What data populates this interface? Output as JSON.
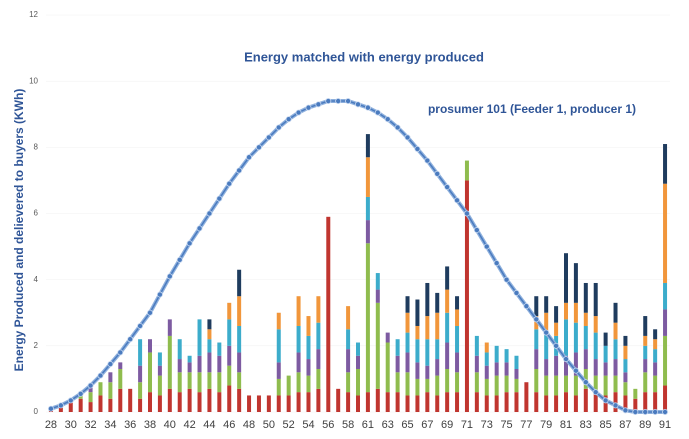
{
  "chart_data": {
    "type": "bar",
    "title": "Energy matched with energy produced",
    "ylabel": "Energy Produced and delievered to buyers (KWh)",
    "categories": [
      "28",
      null,
      "30",
      null,
      "32",
      null,
      "34",
      null,
      "36",
      null,
      "38",
      null,
      "40",
      null,
      "42",
      null,
      "44",
      null,
      "46",
      null,
      "48",
      null,
      "50",
      null,
      "52",
      null,
      "54",
      null,
      "56",
      null,
      "58",
      null,
      "61",
      null,
      "63",
      null,
      "65",
      null,
      "67",
      null,
      "69",
      null,
      "71",
      null,
      "73",
      null,
      "75",
      null,
      "77",
      null,
      "79",
      null,
      "81",
      null,
      "83",
      null,
      "85",
      null,
      "87",
      null,
      "89",
      null,
      "91"
    ],
    "ylim": [
      0,
      12
    ],
    "yticks": [
      0,
      2,
      4,
      6,
      8,
      10,
      12
    ],
    "series": [
      {
        "color": "#c0352f",
        "values": [
          0.05,
          0.2,
          0.3,
          0.4,
          0.3,
          0.5,
          0.4,
          0.7,
          0.7,
          0.4,
          0.6,
          0.5,
          0.7,
          0.6,
          0.7,
          0.6,
          0.7,
          0.6,
          0.8,
          0.7,
          0.5,
          0.5,
          0.5,
          0.5,
          0.5,
          0.6,
          0.6,
          0.7,
          5.9,
          0.7,
          0.6,
          0.5,
          0.6,
          0.7,
          0.6,
          0.6,
          0.5,
          0.5,
          0.6,
          0.5,
          0.6,
          0.6,
          7.0,
          0.6,
          0.5,
          0.5,
          0.6,
          0.6,
          0.9,
          0.6,
          0.5,
          0.5,
          0.6,
          0.5,
          0.7,
          0.6,
          0.5,
          0.6,
          0.5,
          0.4,
          0.6,
          0.6,
          0.8
        ]
      },
      {
        "color": "#8fbc4e",
        "values": [
          0.05,
          0,
          0,
          0.2,
          0.3,
          0.4,
          0.5,
          0.6,
          0,
          0.5,
          1.2,
          0.6,
          1.6,
          0.6,
          0.5,
          0.6,
          0.5,
          0.6,
          0.6,
          0.5,
          0,
          0,
          0,
          0.5,
          0.6,
          0.6,
          0.5,
          0.6,
          0,
          0,
          0.6,
          0.8,
          4.5,
          2.6,
          1.5,
          0.6,
          0.7,
          0.5,
          0.4,
          0.6,
          0.7,
          0.6,
          0.6,
          0.6,
          0.5,
          0.6,
          0.5,
          0.4,
          0,
          0.7,
          0.6,
          0.6,
          0.5,
          0.6,
          0.6,
          0.5,
          0.6,
          0.5,
          0.4,
          0.3,
          0.6,
          0.5,
          1.5
        ]
      },
      {
        "color": "#7d5ba1",
        "values": [
          0,
          0,
          0,
          0,
          0.2,
          0,
          0.3,
          0.2,
          0,
          0.5,
          0.4,
          0.3,
          0.5,
          0.4,
          0.3,
          0.5,
          0.6,
          0.5,
          0.6,
          0.6,
          0,
          0,
          0,
          0.5,
          0,
          0.6,
          0.5,
          0.6,
          0,
          0,
          0.7,
          0.4,
          0.7,
          0.4,
          0.3,
          0.5,
          0.6,
          0.5,
          0.4,
          0.5,
          0.8,
          0.6,
          0,
          0.5,
          0.4,
          0.4,
          0.4,
          0.3,
          0,
          0.6,
          0.5,
          0.6,
          0.6,
          0.7,
          0.6,
          0.5,
          0.4,
          0.5,
          0.3,
          0,
          0.4,
          0.4,
          0.8
        ]
      },
      {
        "color": "#3caccb",
        "values": [
          0,
          0,
          0,
          0,
          0,
          0,
          0,
          0,
          0,
          0.8,
          0,
          0.4,
          0,
          0.6,
          0.2,
          1.1,
          0.4,
          0.4,
          0.8,
          0.8,
          0,
          0,
          0,
          1.0,
          0,
          0.8,
          0.7,
          0.8,
          0,
          0,
          0.6,
          0.4,
          0.7,
          0.5,
          0,
          0.5,
          0.6,
          0.7,
          0.8,
          0.6,
          0.9,
          0.8,
          0,
          0.6,
          0.4,
          0.5,
          0.4,
          0.4,
          0,
          0.6,
          0.8,
          0.6,
          1.1,
          0.9,
          0.7,
          0.8,
          0.5,
          0.6,
          0.4,
          0,
          0.4,
          0.4,
          0.8
        ]
      },
      {
        "color": "#f1963b",
        "values": [
          0,
          0,
          0,
          0,
          0,
          0,
          0,
          0,
          0,
          0,
          0,
          0,
          0,
          0,
          0,
          0,
          0.3,
          0,
          0.5,
          0.9,
          0,
          0,
          0,
          0.5,
          0,
          0.9,
          0.6,
          0.8,
          0,
          0,
          0.7,
          0,
          1.2,
          0,
          0,
          0,
          0.6,
          0.4,
          0.7,
          0.8,
          0.7,
          0.5,
          0,
          0,
          0.3,
          0,
          0,
          0,
          0,
          0.4,
          0.6,
          0.4,
          0.5,
          0.6,
          0.4,
          0.5,
          0,
          0.5,
          0.4,
          0,
          0.3,
          0.3,
          3.0
        ]
      },
      {
        "color": "#1f3c5e",
        "values": [
          0,
          0,
          0,
          0,
          0,
          0,
          0,
          0,
          0,
          0,
          0,
          0,
          0,
          0,
          0,
          0,
          0.3,
          0,
          0,
          0.8,
          0,
          0,
          0,
          0,
          0,
          0,
          0,
          0,
          0,
          0,
          0,
          0,
          0.7,
          0,
          0,
          0,
          0.5,
          0.8,
          1.0,
          0.6,
          0.7,
          0.4,
          0,
          0,
          0,
          0,
          0,
          0,
          0,
          0.6,
          0.5,
          0.5,
          1.5,
          1.2,
          0.9,
          1.0,
          0.4,
          0.6,
          0.3,
          0,
          0.6,
          0.3,
          1.2
        ]
      },
      {
        "type": "line",
        "name": "prosumer 101 (Feeder 1, producer 1)",
        "color": "#4a7bbf",
        "values": [
          0.1,
          0.2,
          0.35,
          0.55,
          0.8,
          1.1,
          1.45,
          1.8,
          2.2,
          2.6,
          3.0,
          3.55,
          4.1,
          4.6,
          5.1,
          5.55,
          6.0,
          6.45,
          6.9,
          7.3,
          7.7,
          8.0,
          8.3,
          8.6,
          8.85,
          9.05,
          9.2,
          9.3,
          9.4,
          9.4,
          9.4,
          9.3,
          9.2,
          9.05,
          8.85,
          8.6,
          8.3,
          7.95,
          7.6,
          7.2,
          6.8,
          6.4,
          6.0,
          5.5,
          5.0,
          4.5,
          4.0,
          3.6,
          3.2,
          2.8,
          2.4,
          2.0,
          1.6,
          1.25,
          0.9,
          0.6,
          0.35,
          0.2,
          0.05,
          0,
          0,
          0,
          0
        ]
      }
    ]
  }
}
